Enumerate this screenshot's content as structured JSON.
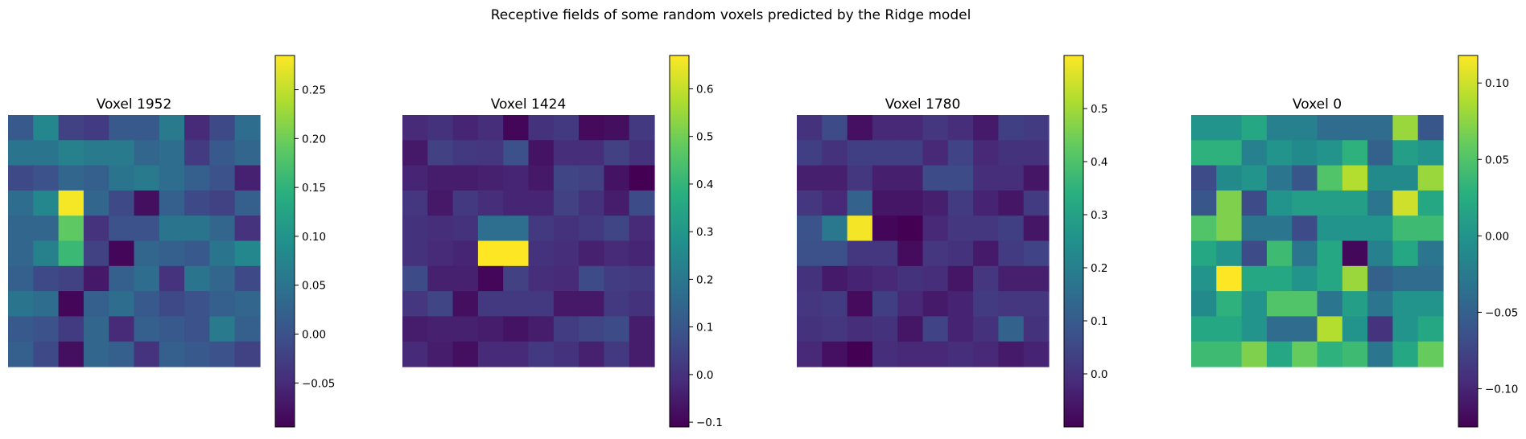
{
  "figure": {
    "suptitle": "Receptive fields of some random voxels predicted by the Ridge model"
  },
  "chart_data": [
    {
      "type": "heatmap",
      "title": "Voxel 1952",
      "colormap": "viridis",
      "vmin": -0.095,
      "vmax": 0.285,
      "colorbar_ticks": [
        -0.05,
        0.0,
        0.05,
        0.1,
        0.15,
        0.2,
        0.25
      ],
      "colorbar_tick_labels": [
        "−0.05",
        "0.00",
        "0.05",
        "0.10",
        "0.15",
        "0.20",
        "0.25"
      ],
      "values": [
        [
          0.01,
          0.08,
          -0.02,
          -0.03,
          0.01,
          0.01,
          0.06,
          -0.05,
          -0.01,
          0.04
        ],
        [
          0.05,
          0.05,
          0.07,
          0.06,
          0.06,
          0.03,
          0.04,
          -0.03,
          0.01,
          0.03
        ],
        [
          -0.01,
          0.0,
          0.03,
          0.02,
          0.05,
          0.06,
          0.04,
          0.02,
          0.0,
          -0.06
        ],
        [
          0.04,
          0.08,
          0.28,
          0.03,
          -0.01,
          -0.08,
          0.02,
          -0.01,
          -0.02,
          0.02
        ],
        [
          0.03,
          0.03,
          0.19,
          -0.04,
          0.0,
          0.0,
          0.05,
          0.05,
          0.03,
          -0.04
        ],
        [
          0.03,
          0.07,
          0.16,
          -0.02,
          -0.09,
          0.03,
          0.02,
          0.01,
          0.05,
          0.08
        ],
        [
          0.02,
          -0.01,
          -0.02,
          -0.07,
          0.02,
          0.04,
          -0.04,
          0.05,
          0.03,
          -0.01
        ],
        [
          0.05,
          0.04,
          -0.09,
          0.02,
          0.04,
          0.01,
          -0.01,
          0.0,
          0.02,
          0.03
        ],
        [
          0.01,
          0.0,
          -0.03,
          0.03,
          -0.05,
          0.02,
          0.01,
          0.0,
          0.06,
          0.02
        ],
        [
          0.02,
          -0.01,
          -0.08,
          0.03,
          0.02,
          -0.04,
          0.02,
          0.01,
          0.0,
          -0.02
        ]
      ]
    },
    {
      "type": "heatmap",
      "title": "Voxel 1424",
      "colormap": "viridis",
      "vmin": -0.11,
      "vmax": 0.67,
      "colorbar_ticks": [
        -0.1,
        0.0,
        0.1,
        0.2,
        0.3,
        0.4,
        0.5,
        0.6
      ],
      "colorbar_tick_labels": [
        "−0.1",
        "0.0",
        "0.1",
        "0.2",
        "0.3",
        "0.4",
        "0.5",
        "0.6"
      ],
      "values": [
        [
          -0.02,
          0.0,
          -0.03,
          -0.01,
          -0.1,
          0.0,
          0.02,
          -0.09,
          -0.08,
          0.02
        ],
        [
          -0.06,
          0.04,
          0.02,
          0.01,
          0.08,
          -0.07,
          -0.01,
          -0.01,
          0.04,
          0.0
        ],
        [
          -0.03,
          -0.05,
          -0.05,
          -0.04,
          -0.03,
          -0.06,
          0.05,
          0.04,
          -0.07,
          -0.11
        ],
        [
          0.01,
          -0.06,
          0.02,
          -0.01,
          -0.03,
          -0.03,
          0.04,
          0.0,
          -0.05,
          0.07
        ],
        [
          0.0,
          -0.01,
          0.0,
          0.17,
          0.17,
          0.02,
          0.0,
          0.02,
          0.05,
          -0.02
        ],
        [
          0.0,
          -0.02,
          -0.03,
          0.67,
          0.67,
          0.0,
          -0.01,
          -0.04,
          -0.02,
          -0.03
        ],
        [
          0.07,
          -0.04,
          -0.04,
          -0.1,
          0.04,
          -0.01,
          -0.02,
          0.07,
          0.03,
          0.02
        ],
        [
          0.01,
          0.05,
          -0.08,
          0.02,
          0.02,
          0.02,
          -0.06,
          -0.06,
          0.02,
          0.0
        ],
        [
          -0.05,
          -0.04,
          -0.04,
          -0.05,
          -0.07,
          -0.05,
          0.03,
          0.05,
          0.07,
          -0.05
        ],
        [
          -0.02,
          -0.05,
          -0.08,
          -0.02,
          -0.02,
          0.02,
          0.0,
          -0.04,
          0.02,
          -0.05
        ]
      ]
    },
    {
      "type": "heatmap",
      "title": "Voxel 1780",
      "colormap": "viridis",
      "vmin": -0.1,
      "vmax": 0.6,
      "colorbar_ticks": [
        0.0,
        0.1,
        0.2,
        0.3,
        0.4,
        0.5
      ],
      "colorbar_tick_labels": [
        "0.0",
        "0.1",
        "0.2",
        "0.3",
        "0.4",
        "0.5"
      ],
      "values": [
        [
          0.0,
          0.06,
          -0.07,
          -0.02,
          -0.02,
          0.01,
          -0.01,
          -0.05,
          0.03,
          0.02
        ],
        [
          0.03,
          0.0,
          0.03,
          0.03,
          0.03,
          -0.02,
          0.04,
          -0.02,
          0.0,
          0.0
        ],
        [
          -0.04,
          -0.04,
          0.01,
          -0.04,
          -0.04,
          0.06,
          0.06,
          -0.01,
          -0.01,
          -0.06
        ],
        [
          0.01,
          -0.02,
          0.12,
          -0.06,
          -0.06,
          -0.04,
          0.02,
          -0.03,
          -0.06,
          0.02
        ],
        [
          0.08,
          0.18,
          0.59,
          -0.09,
          -0.1,
          -0.02,
          0.01,
          0.01,
          0.03,
          -0.06
        ],
        [
          0.07,
          0.07,
          0.01,
          0.01,
          -0.08,
          0.01,
          0.0,
          -0.05,
          0.02,
          0.04
        ],
        [
          0.0,
          -0.05,
          -0.03,
          -0.02,
          0.0,
          -0.01,
          -0.06,
          0.01,
          -0.04,
          -0.04
        ],
        [
          0.01,
          0.02,
          -0.08,
          0.03,
          -0.02,
          -0.05,
          -0.03,
          0.02,
          0.01,
          0.01
        ],
        [
          0.0,
          0.01,
          -0.01,
          0.0,
          -0.06,
          0.04,
          -0.03,
          0.0,
          0.12,
          0.0
        ],
        [
          -0.02,
          -0.07,
          -0.1,
          -0.01,
          -0.02,
          -0.02,
          -0.01,
          -0.02,
          -0.05,
          -0.03
        ]
      ]
    },
    {
      "type": "heatmap",
      "title": "Voxel 0",
      "colormap": "viridis",
      "vmin": -0.125,
      "vmax": 0.118,
      "colorbar_ticks": [
        -0.1,
        -0.05,
        0.0,
        0.05,
        0.1
      ],
      "colorbar_tick_labels": [
        "−0.10",
        "−0.05",
        "0.00",
        "0.05",
        "0.10"
      ],
      "values": [
        [
          0.0,
          0.0,
          0.02,
          -0.02,
          -0.02,
          -0.04,
          -0.04,
          -0.04,
          0.08,
          -0.06
        ],
        [
          0.03,
          0.03,
          -0.02,
          0.0,
          -0.01,
          0.0,
          0.03,
          -0.05,
          0.01,
          0.0
        ],
        [
          -0.07,
          -0.01,
          0.0,
          -0.03,
          -0.06,
          0.05,
          0.09,
          -0.01,
          -0.01,
          0.08
        ],
        [
          -0.06,
          0.07,
          -0.07,
          0.0,
          0.01,
          0.01,
          0.01,
          -0.03,
          0.1,
          0.02
        ],
        [
          0.05,
          0.07,
          -0.03,
          -0.03,
          -0.07,
          0.0,
          0.0,
          0.0,
          0.04,
          0.04
        ],
        [
          0.02,
          0.0,
          -0.07,
          0.04,
          -0.03,
          0.02,
          -0.12,
          -0.02,
          0.02,
          -0.03
        ],
        [
          0.0,
          0.12,
          0.02,
          0.02,
          0.0,
          0.02,
          0.08,
          -0.05,
          -0.04,
          -0.04
        ],
        [
          -0.01,
          0.03,
          0.0,
          0.05,
          0.05,
          -0.03,
          0.01,
          -0.03,
          0.0,
          0.0
        ],
        [
          0.02,
          0.02,
          0.0,
          -0.04,
          -0.04,
          0.09,
          0.0,
          -0.09,
          0.0,
          0.02
        ],
        [
          0.04,
          0.04,
          0.07,
          0.02,
          0.06,
          0.03,
          0.04,
          -0.03,
          0.02,
          0.06
        ]
      ]
    }
  ]
}
